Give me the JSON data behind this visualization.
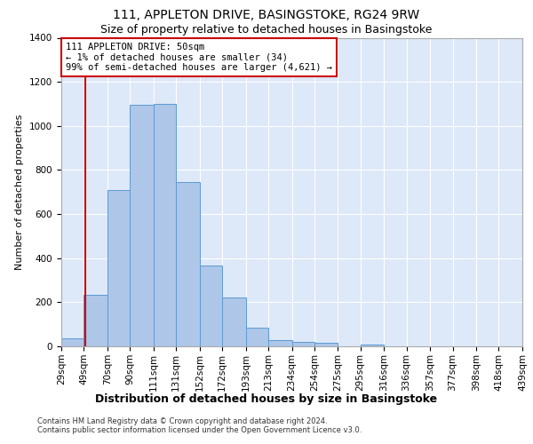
{
  "title": "111, APPLETON DRIVE, BASINGSTOKE, RG24 9RW",
  "subtitle": "Size of property relative to detached houses in Basingstoke",
  "xlabel": "Distribution of detached houses by size in Basingstoke",
  "ylabel": "Number of detached properties",
  "footnote1": "Contains HM Land Registry data © Crown copyright and database right 2024.",
  "footnote2": "Contains public sector information licensed under the Open Government Licence v3.0.",
  "bar_edges": [
    29,
    49,
    70,
    90,
    111,
    131,
    152,
    172,
    193,
    213,
    234,
    254,
    275,
    295,
    316,
    336,
    357,
    377,
    398,
    418,
    439
  ],
  "bar_heights": [
    35,
    235,
    710,
    1095,
    1100,
    745,
    365,
    220,
    85,
    30,
    20,
    15,
    0,
    10,
    0,
    0,
    0,
    0,
    0,
    0
  ],
  "bar_color": "#aec6e8",
  "bar_edge_color": "#5b9bd5",
  "property_size": 50,
  "red_line_color": "#cc0000",
  "annotation_line1": "111 APPLETON DRIVE: 50sqm",
  "annotation_line2": "← 1% of detached houses are smaller (34)",
  "annotation_line3": "99% of semi-detached houses are larger (4,621) →",
  "annotation_box_color": "#cc0000",
  "ylim": [
    0,
    1400
  ],
  "yticks": [
    0,
    200,
    400,
    600,
    800,
    1000,
    1200,
    1400
  ],
  "bg_color": "#dde8f8",
  "grid_color": "#ffffff",
  "title_fontsize": 10,
  "subtitle_fontsize": 9,
  "xlabel_fontsize": 9,
  "ylabel_fontsize": 8,
  "tick_fontsize": 7.5,
  "annotation_fontsize": 7.5,
  "footnote_fontsize": 6
}
